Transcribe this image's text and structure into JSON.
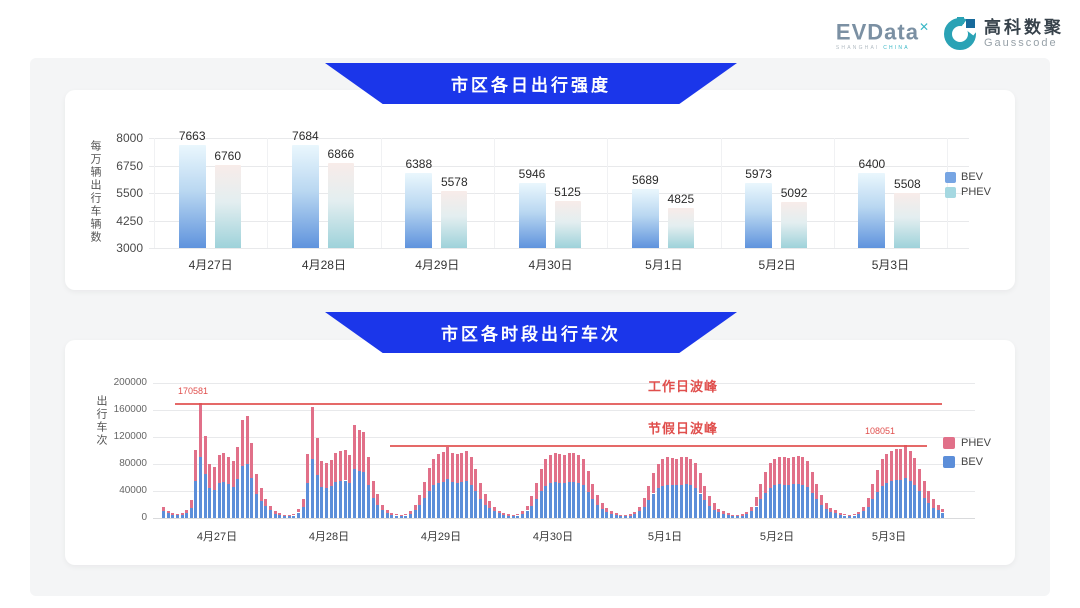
{
  "logo": {
    "evdata_text": "EVData",
    "evdata_sup": "✕",
    "evdata_sub_left": "SHANGHAI",
    "evdata_sub_right": "CHINA",
    "gausscode_cn": "高科数聚",
    "gausscode_en": "Gausscode"
  },
  "colors": {
    "accent_blue": "#1b36ea",
    "annotation_red": "#e04f4d",
    "bev_blue": "#5c8ed9",
    "phev_pink": "#e17089",
    "grid_gray": "#e8e9eb"
  },
  "chart_data": [
    {
      "type": "bar",
      "banner_title": "市区各日出行强度",
      "ylabel": "每万辆出行车辆数",
      "ymin": 3000,
      "ymax": 8000,
      "yticks": [
        8000,
        6750,
        5500,
        4250,
        3000
      ],
      "categories": [
        "4月27日",
        "4月28日",
        "4月29日",
        "4月30日",
        "5月1日",
        "5月2日",
        "5月3日"
      ],
      "series": [
        {
          "name": "BEV",
          "gradient": [
            "#eaf7fd",
            "#b9d7f1",
            "#5f93dd"
          ],
          "values": [
            7663,
            7684,
            6388,
            5946,
            5689,
            5973,
            6400
          ]
        },
        {
          "name": "PHEV",
          "gradient": [
            "#f8ece9",
            "#e3eef0",
            "#9ed2da"
          ],
          "values": [
            6760,
            6866,
            5578,
            5125,
            4825,
            5092,
            5508
          ]
        }
      ],
      "legend": [
        {
          "name": "BEV",
          "color": "#77a5e3"
        },
        {
          "name": "PHEV",
          "color": "#a5d8e1"
        }
      ]
    },
    {
      "type": "bar",
      "subtype": "stacked-hourly",
      "banner_title": "市区各时段出行车次",
      "ylabel": "出行车次",
      "ymin": 0,
      "ymax": 200000,
      "yticks": [
        200000,
        160000,
        120000,
        80000,
        40000,
        0
      ],
      "hours_per_day": 24,
      "legend": [
        {
          "name": "PHEV",
          "color": "#e17089"
        },
        {
          "name": "BEV",
          "color": "#5c8ed9"
        }
      ],
      "annotations": {
        "workday": {
          "label": "工作日波峰",
          "value": 170581,
          "value_label": "170581"
        },
        "holiday": {
          "label": "节假日波峰",
          "value": 108051,
          "value_label": "108051"
        }
      },
      "days": [
        {
          "label": "4月27日",
          "bev": [
            9900,
            6800,
            5000,
            4000,
            4300,
            7400,
            15400,
            54500,
            90400,
            64800,
            44000,
            41800,
            51700,
            52800,
            50100,
            46200,
            57200,
            77400,
            80000,
            59900,
            35800,
            25700,
            17400,
            11200
          ],
          "phev": [
            6100,
            4200,
            3000,
            2500,
            2700,
            4600,
            11600,
            46500,
            80181,
            56200,
            36000,
            34200,
            42300,
            43200,
            40900,
            37800,
            48800,
            68600,
            71000,
            51100,
            29200,
            19300,
            10600,
            6800
          ]
        },
        {
          "label": "4月28日",
          "bev": [
            6200,
            4300,
            3100,
            2800,
            3700,
            8100,
            16000,
            51300,
            87500,
            63100,
            46200,
            45100,
            47300,
            53400,
            54500,
            55600,
            51700,
            73100,
            69400,
            67800,
            49500,
            30300,
            19900,
            12400
          ],
          "phev": [
            3800,
            2700,
            1900,
            1700,
            2300,
            4900,
            12000,
            43700,
            77500,
            54900,
            37800,
            36900,
            38700,
            43600,
            44500,
            45400,
            42300,
            64900,
            61600,
            60200,
            40500,
            24700,
            15100,
            7600
          ]
        },
        {
          "label": "4月29日",
          "bev": [
            7400,
            5000,
            3700,
            3100,
            3700,
            6200,
            11600,
            18700,
            29700,
            40700,
            48400,
            52300,
            53900,
            58300,
            53400,
            52300,
            53400,
            55000,
            49500,
            39600,
            28600,
            19800,
            14200,
            9900
          ],
          "phev": [
            4600,
            3000,
            2300,
            1900,
            2300,
            3800,
            7400,
            15300,
            24300,
            33300,
            39600,
            42700,
            44100,
            47700,
            43600,
            42700,
            43600,
            45000,
            40500,
            32400,
            23400,
            16200,
            10800,
            6100
          ]
        },
        {
          "label": "4月30日",
          "bev": [
            6800,
            4700,
            3400,
            3100,
            3700,
            6200,
            11000,
            17600,
            28600,
            39600,
            47900,
            51200,
            52800,
            52300,
            51700,
            52800,
            53400,
            51700,
            48400,
            38500,
            27500,
            18700,
            13100,
            9300
          ],
          "phev": [
            4200,
            2800,
            2100,
            1900,
            2300,
            3800,
            7000,
            14400,
            23400,
            32400,
            39100,
            41800,
            43200,
            42700,
            42300,
            43200,
            43600,
            42300,
            39600,
            31500,
            22500,
            15300,
            9900,
            5700
          ]
        },
        {
          "label": "5月1日",
          "bev": [
            6200,
            4300,
            3100,
            2800,
            3400,
            5600,
            9800,
            16500,
            26400,
            36300,
            44000,
            47900,
            49500,
            49000,
            48400,
            49500,
            50100,
            48400,
            45100,
            36300,
            26400,
            18200,
            12500,
            8700
          ],
          "phev": [
            3800,
            2700,
            1900,
            1700,
            2100,
            3400,
            6200,
            13500,
            21600,
            29700,
            36000,
            39100,
            40500,
            40000,
            39600,
            40500,
            40900,
            39600,
            36900,
            29700,
            21600,
            14800,
            9500,
            5300
          ]
        },
        {
          "label": "5月2日",
          "bev": [
            6200,
            4300,
            3100,
            2800,
            3400,
            5600,
            10400,
            17100,
            27500,
            37400,
            45100,
            48400,
            50100,
            49500,
            49000,
            50100,
            50600,
            49500,
            46200,
            37400,
            27500,
            18700,
            13100,
            9300
          ],
          "phev": [
            3800,
            2700,
            1900,
            1700,
            2100,
            3400,
            6600,
            13900,
            22500,
            30600,
            36900,
            39600,
            40900,
            40500,
            40000,
            40900,
            41400,
            40500,
            37800,
            30600,
            22500,
            15300,
            9900,
            5700
          ]
        },
        {
          "label": "5月3日",
          "bev": [
            7400,
            5000,
            3700,
            3100,
            3700,
            5600,
            9800,
            16000,
            27500,
            39100,
            47900,
            52300,
            55000,
            56700,
            56100,
            59451,
            54500,
            49000,
            40200,
            30300,
            22000,
            15400,
            12400,
            8100
          ],
          "phev": [
            4600,
            3000,
            2300,
            1900,
            2300,
            3400,
            6200,
            13000,
            22500,
            31900,
            39100,
            42700,
            45000,
            46300,
            45900,
            48600,
            44500,
            40000,
            32800,
            24700,
            18000,
            12600,
            7600,
            4900
          ]
        }
      ]
    }
  ]
}
